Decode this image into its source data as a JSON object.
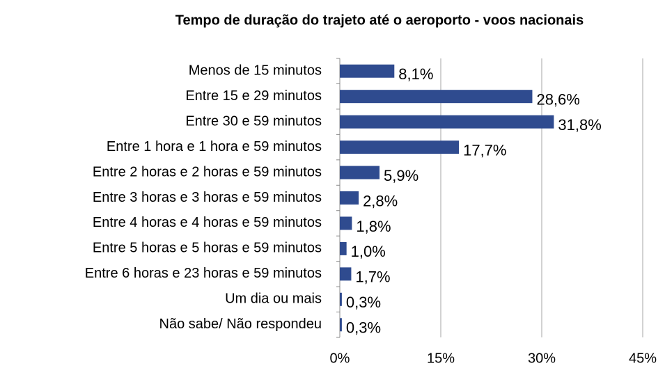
{
  "chart_data": {
    "type": "bar",
    "orientation": "horizontal",
    "title": "Tempo de duração do trajeto até o aeroporto - voos nacionais",
    "categories": [
      "Menos de 15 minutos",
      "Entre 15 e 29 minutos",
      "Entre 30 e 59 minutos",
      "Entre 1 hora e 1 hora e 59 minutos",
      "Entre 2 horas e 2 horas e 59 minutos",
      "Entre 3 horas e 3 horas e 59 minutos",
      "Entre 4 horas e 4 horas e 59 minutos",
      "Entre 5 horas e 5 horas e 59 minutos",
      "Entre 6 horas e 23 horas e 59 minutos",
      "Um dia ou mais",
      "Não sabe/ Não respondeu"
    ],
    "values": [
      8.1,
      28.6,
      31.8,
      17.7,
      5.9,
      2.8,
      1.8,
      1.0,
      1.7,
      0.3,
      0.3
    ],
    "value_labels": [
      "8,1%",
      "28,6%",
      "31,8%",
      "17,7%",
      "5,9%",
      "2,8%",
      "1,8%",
      "1,0%",
      "1,7%",
      "0,3%",
      "0,3%"
    ],
    "color": "#2f4b8f",
    "xlim": [
      0,
      45
    ],
    "xticks": [
      {
        "value": 0,
        "label": "0%"
      },
      {
        "value": 15,
        "label": "15%"
      },
      {
        "value": 30,
        "label": "30%"
      },
      {
        "value": 45,
        "label": "45%"
      }
    ],
    "grid": true
  }
}
